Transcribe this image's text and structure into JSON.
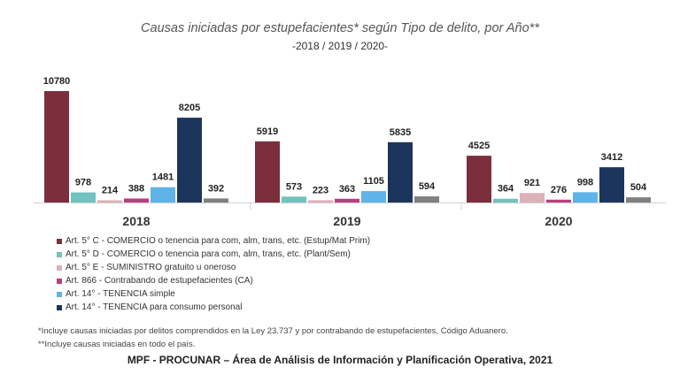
{
  "chart_data": {
    "type": "bar",
    "title": "Causas iniciadas por estupefacientes* según Tipo de delito, por Año**",
    "subtitle": "-2018 / 2019 / 2020-",
    "categories": [
      "2018",
      "2019",
      "2020"
    ],
    "series": [
      {
        "name": "Art. 5° C - COMERCIO o tenencia para com, alm, trans, etc. (Estup/Mat Prim)",
        "color": "#7b2f3d",
        "values": [
          10780,
          5919,
          4525
        ]
      },
      {
        "name": "Art. 5° D - COMERCIO o tenencia para com, alm, trans, etc. (Plant/Sem)",
        "color": "#72c2bf",
        "values": [
          978,
          573,
          364
        ]
      },
      {
        "name": "Art. 5° E - SUMINISTRO gratuito u oneroso",
        "color": "#dcb1b8",
        "values": [
          214,
          223,
          921
        ]
      },
      {
        "name": "Art. 866 - Contrabando de estupefacientes (CA)",
        "color": "#b93f7e",
        "values": [
          388,
          363,
          276
        ]
      },
      {
        "name": "Art. 14° - TENENCIA simple",
        "color": "#5fb3e6",
        "values": [
          1481,
          1105,
          998
        ]
      },
      {
        "name": "Art. 14° - TENENCIA para consumo personal",
        "color": "#1b355c",
        "values": [
          8205,
          5835,
          3412
        ]
      },
      {
        "color": "#808080",
        "values": [
          392,
          594,
          504
        ]
      }
    ],
    "ylim": [
      0,
      10780
    ],
    "grid": false,
    "legend": "bottom-left"
  },
  "notes": [
    "*Incluye causas iniciadas por delitos comprendidos en la Ley 23.737 y por contrabando de estupefacientes, Código Aduanero.",
    "**Incluye causas iniciadas en todo el país."
  ],
  "source": "MPF - PROCUNAR – Área de Análisis de Información y Planificación Operativa, 2021"
}
